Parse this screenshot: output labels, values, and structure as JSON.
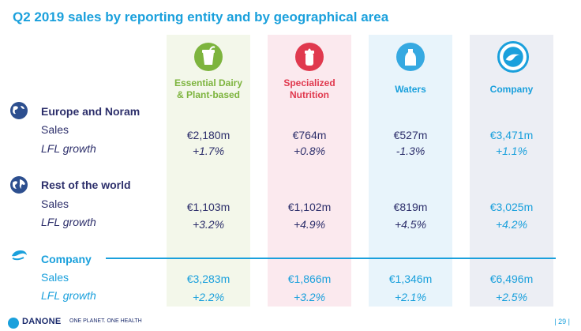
{
  "title": "Q2 2019 sales by reporting entity and by geographical area",
  "columns": [
    {
      "line1": "Essential Dairy",
      "line2": "& Plant-based",
      "color": "#7db43e",
      "icon": "yogurt-cup-icon"
    },
    {
      "line1": "Specialized",
      "line2": "Nutrition",
      "color": "#e0394e",
      "icon": "baby-bottle-icon"
    },
    {
      "line1": "Waters",
      "line2": "",
      "color": "#1aa0dc",
      "icon": "water-bottle-icon"
    },
    {
      "line1": "Company",
      "line2": "",
      "color": "#1aa0dc",
      "icon": "danone-logo-icon"
    }
  ],
  "sections": [
    {
      "name": "Europe and Noram",
      "icon": "globe-americas-icon",
      "sales_label": "Sales",
      "lfl_label": "LFL growth",
      "sales": [
        "€2,180m",
        "€764m",
        "€527m",
        "€3,471m"
      ],
      "lfl": [
        "+1.7%",
        "+0.8%",
        "-1.3%",
        "+1.1%"
      ]
    },
    {
      "name": "Rest of the world",
      "icon": "globe-world-icon",
      "sales_label": "Sales",
      "lfl_label": "LFL growth",
      "sales": [
        "€1,103m",
        "€1,102m",
        "€819m",
        "€3,025m"
      ],
      "lfl": [
        "+3.2%",
        "+4.9%",
        "+4.5%",
        "+4.2%"
      ]
    },
    {
      "name": "Company",
      "icon": "danone-swirl-icon",
      "sales_label": "Sales",
      "lfl_label": "LFL growth",
      "sales": [
        "€3,283m",
        "€1,866m",
        "€1,346m",
        "€6,496m"
      ],
      "lfl": [
        "+2.2%",
        "+3.2%",
        "+2.1%",
        "+2.5%"
      ]
    }
  ],
  "footer": {
    "brand": "DANONE",
    "slogan": "ONE PLANET. ONE HEALTH",
    "page": "| 29 |"
  }
}
